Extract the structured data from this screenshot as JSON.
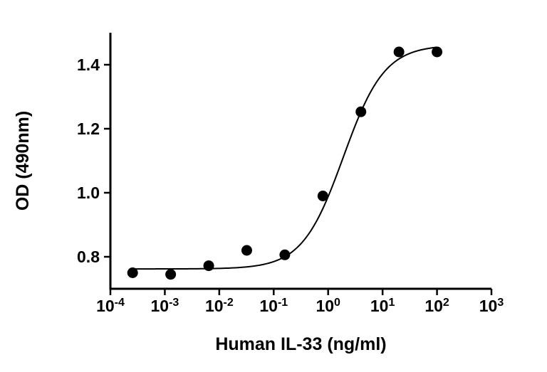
{
  "figure": {
    "description_label": "ELISA dose-response standard curve"
  },
  "chart_data": {
    "type": "scatter",
    "title": "",
    "xlabel": "Human IL-33 (ng/ml)",
    "ylabel": "OD (490nm)",
    "x_scale": "log10",
    "xlim_log": [
      -4,
      3
    ],
    "ylim": [
      0.7,
      1.5
    ],
    "x_tick_base": "10",
    "x_tick_exponents": [
      "-4",
      "-3",
      "-2",
      "-1",
      "0",
      "1",
      "2",
      "3"
    ],
    "y_ticks": [
      {
        "value": 0.8,
        "label": "0.8"
      },
      {
        "value": 1.0,
        "label": "1.0"
      },
      {
        "value": 1.2,
        "label": "1.2"
      },
      {
        "value": 1.4,
        "label": "1.4"
      }
    ],
    "grid": false,
    "legend": "none",
    "points": [
      {
        "x": 0.000256,
        "y": 0.75
      },
      {
        "x": 0.00128,
        "y": 0.745
      },
      {
        "x": 0.0064,
        "y": 0.772
      },
      {
        "x": 0.032,
        "y": 0.82
      },
      {
        "x": 0.16,
        "y": 0.806
      },
      {
        "x": 0.8,
        "y": 0.99
      },
      {
        "x": 4,
        "y": 1.253
      },
      {
        "x": 20,
        "y": 1.44
      },
      {
        "x": 100,
        "y": 1.44
      }
    ],
    "fit_curve": {
      "model": "4PL",
      "bottom": 0.762,
      "top": 1.462,
      "log_ec50": 0.28,
      "hill": 1.15,
      "x_range": [
        0.000256,
        100
      ]
    },
    "colors": {
      "points": "#000000",
      "curve": "#000000",
      "axis": "#000000",
      "text": "#000000",
      "background": "#ffffff"
    }
  }
}
